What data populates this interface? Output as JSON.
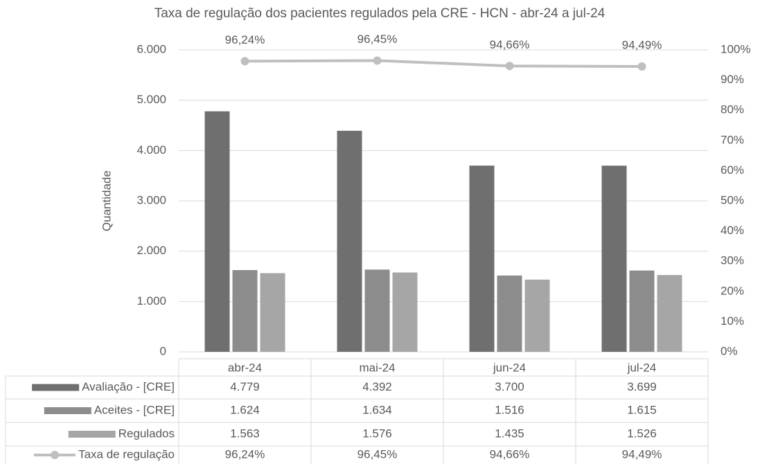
{
  "chart_data": {
    "type": "bar",
    "title": "Taxa de regulação dos pacientes regulados pela CRE - HCN - abr-24 a jul-24",
    "y_label": "Quantidade",
    "categories": [
      "abr-24",
      "mai-24",
      "jun-24",
      "jul-24"
    ],
    "series": [
      {
        "name": "Avaliação - [CRE]",
        "color": "#6f6f6f",
        "values": [
          4779,
          4392,
          3700,
          3699
        ],
        "value_labels": [
          "4.779",
          "4.392",
          "3.700",
          "3.699"
        ]
      },
      {
        "name": "Aceites - [CRE]",
        "color": "#8c8c8c",
        "values": [
          1624,
          1634,
          1516,
          1615
        ],
        "value_labels": [
          "1.624",
          "1.634",
          "1.516",
          "1.615"
        ]
      },
      {
        "name": "Regulados",
        "color": "#a6a6a6",
        "values": [
          1563,
          1576,
          1435,
          1526
        ],
        "value_labels": [
          "1.563",
          "1.576",
          "1.435",
          "1.526"
        ]
      },
      {
        "name": "Taxa de regulação",
        "type": "line",
        "axis": "y2",
        "color": "#bfbfbf",
        "values": [
          96.24,
          96.45,
          94.66,
          94.49
        ],
        "value_labels": [
          "96,24%",
          "96,45%",
          "94,66%",
          "94,49%"
        ]
      }
    ],
    "ylim": [
      0,
      6000
    ],
    "yticks": [
      0,
      {
        "value": 1000,
        "label": "1.000"
      },
      {
        "value": 2000,
        "label": "2.000"
      },
      {
        "value": 3000,
        "label": "3.000"
      },
      {
        "value": 4000,
        "label": "4.000"
      },
      {
        "value": 5000,
        "label": "5.000"
      },
      {
        "value": 6000,
        "label": "6.000"
      }
    ],
    "y2lim": [
      0,
      100
    ],
    "y2ticks": [
      {
        "value": 0,
        "label": "0%"
      },
      {
        "value": 10,
        "label": "10%"
      },
      {
        "value": 20,
        "label": "20%"
      },
      {
        "value": 30,
        "label": "30%"
      },
      {
        "value": 40,
        "label": "40%"
      },
      {
        "value": 50,
        "label": "50%"
      },
      {
        "value": 60,
        "label": "60%"
      },
      {
        "value": 70,
        "label": "70%"
      },
      {
        "value": 80,
        "label": "80%"
      },
      {
        "value": 90,
        "label": "90%"
      },
      {
        "value": 100,
        "label": "100%"
      }
    ],
    "grid": true
  }
}
